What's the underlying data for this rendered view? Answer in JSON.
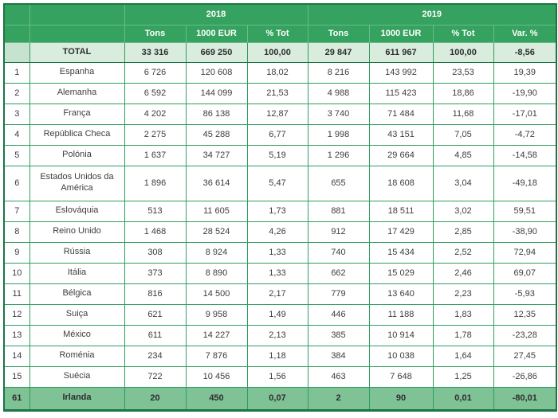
{
  "chart_data": {
    "type": "table",
    "layout": {
      "grid": "on",
      "decimal_separator": ",",
      "thousands_separator": " "
    },
    "colors": {
      "header_green": "#35a25f",
      "header_divider": "#66bd8b",
      "body_border": "#2f9e5f",
      "outer_border": "#1a7544",
      "total_row_bg": "#d9ecdd",
      "total_rank_bg": "#c5e3cf",
      "highlight_row_bg": "#7fc296",
      "body_text": "#3d3d3d",
      "header_text": "#ffffff"
    },
    "year_groups": [
      {
        "label": "2018",
        "span": 3
      },
      {
        "label": "2019",
        "span": 4
      }
    ],
    "columns": [
      "Tons",
      "1000 EUR",
      "% Tot",
      "Tons",
      "1000 EUR",
      "% Tot",
      "Var. %"
    ],
    "total_row": {
      "rank": "",
      "name": "TOTAL",
      "values": [
        "33 316",
        "669 250",
        "100,00",
        "29 847",
        "611 967",
        "100,00",
        "-8,56"
      ]
    },
    "rows": [
      {
        "rank": "1",
        "name": "Espanha",
        "values": [
          "6 726",
          "120 608",
          "18,02",
          "8 216",
          "143 992",
          "23,53",
          "19,39"
        ]
      },
      {
        "rank": "2",
        "name": "Alemanha",
        "values": [
          "6 592",
          "144 099",
          "21,53",
          "4 988",
          "115 423",
          "18,86",
          "-19,90"
        ]
      },
      {
        "rank": "3",
        "name": "França",
        "values": [
          "4 202",
          "86 138",
          "12,87",
          "3 740",
          "71 484",
          "11,68",
          "-17,01"
        ]
      },
      {
        "rank": "4",
        "name": "República Checa",
        "values": [
          "2 275",
          "45 288",
          "6,77",
          "1 998",
          "43 151",
          "7,05",
          "-4,72"
        ]
      },
      {
        "rank": "5",
        "name": "Polónia",
        "values": [
          "1 637",
          "34 727",
          "5,19",
          "1 296",
          "29 664",
          "4,85",
          "-14,58"
        ]
      },
      {
        "rank": "6",
        "name": "Estados Unidos da América",
        "values": [
          "1 896",
          "36 614",
          "5,47",
          "655",
          "18 608",
          "3,04",
          "-49,18"
        ]
      },
      {
        "rank": "7",
        "name": "Eslováquia",
        "values": [
          "513",
          "11 605",
          "1,73",
          "881",
          "18 511",
          "3,02",
          "59,51"
        ]
      },
      {
        "rank": "8",
        "name": "Reino Unido",
        "values": [
          "1 468",
          "28 524",
          "4,26",
          "912",
          "17 429",
          "2,85",
          "-38,90"
        ]
      },
      {
        "rank": "9",
        "name": "Rússia",
        "values": [
          "308",
          "8 924",
          "1,33",
          "740",
          "15 434",
          "2,52",
          "72,94"
        ]
      },
      {
        "rank": "10",
        "name": "Itália",
        "values": [
          "373",
          "8 890",
          "1,33",
          "662",
          "15 029",
          "2,46",
          "69,07"
        ]
      },
      {
        "rank": "11",
        "name": "Bélgica",
        "values": [
          "816",
          "14 500",
          "2,17",
          "779",
          "13 640",
          "2,23",
          "-5,93"
        ]
      },
      {
        "rank": "12",
        "name": "Suiça",
        "values": [
          "621",
          "9 958",
          "1,49",
          "446",
          "11 188",
          "1,83",
          "12,35"
        ]
      },
      {
        "rank": "13",
        "name": "México",
        "values": [
          "611",
          "14 227",
          "2,13",
          "385",
          "10 914",
          "1,78",
          "-23,28"
        ]
      },
      {
        "rank": "14",
        "name": "Roménia",
        "values": [
          "234",
          "7 876",
          "1,18",
          "384",
          "10 038",
          "1,64",
          "27,45"
        ]
      },
      {
        "rank": "15",
        "name": "Suécia",
        "values": [
          "722",
          "10 456",
          "1,56",
          "463",
          "7 648",
          "1,25",
          "-26,86"
        ]
      }
    ],
    "highlight_row": {
      "rank": "61",
      "name": "Irlanda",
      "values": [
        "20",
        "450",
        "0,07",
        "2",
        "90",
        "0,01",
        "-80,01"
      ]
    }
  }
}
